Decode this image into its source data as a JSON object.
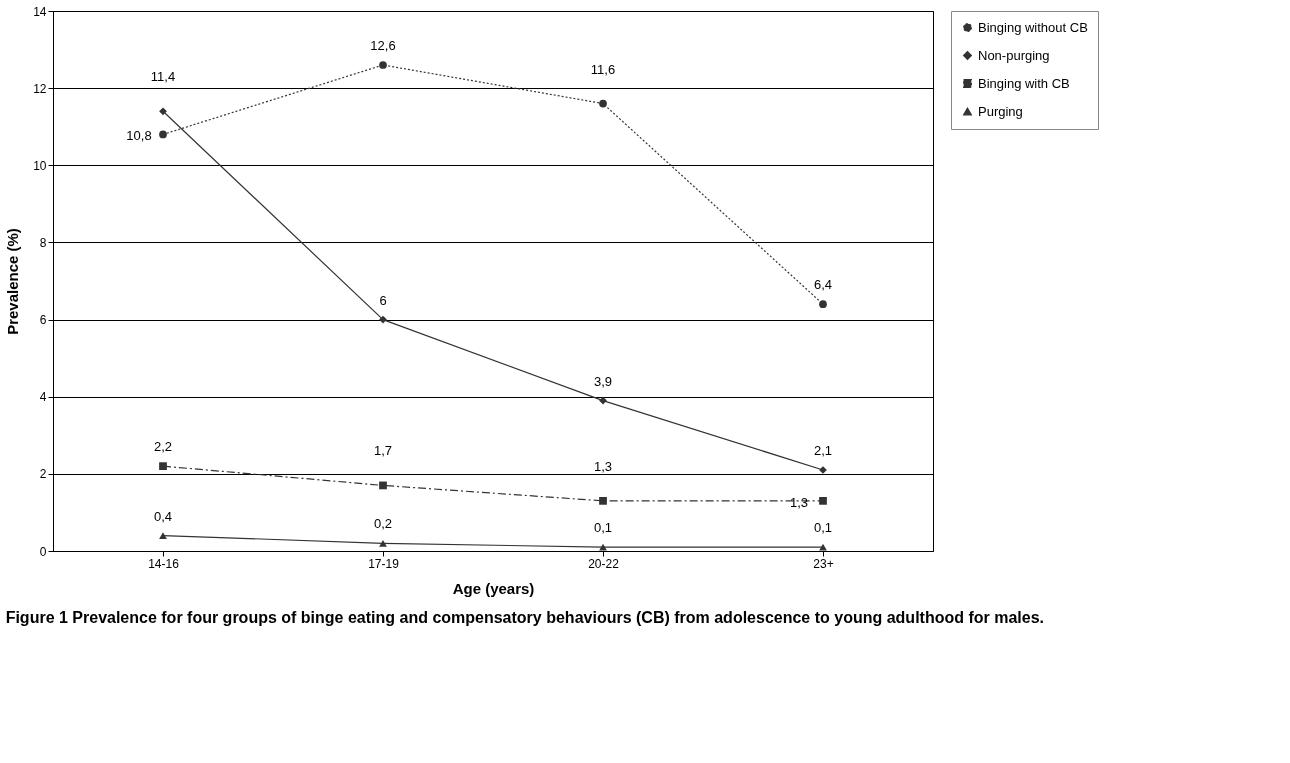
{
  "chart_data": {
    "type": "line",
    "title": "Figure 1 Prevalence for four groups of binge eating and compensatory behaviours (CB) from adolescence to young adulthood for males.",
    "xlabel": "Age (years)",
    "ylabel": "Prevalence (%)",
    "categories": [
      "14-16",
      "17-19",
      "20-22",
      "23+"
    ],
    "ylim": [
      0,
      14
    ],
    "yticks": [
      0,
      2,
      4,
      6,
      8,
      10,
      12,
      14
    ],
    "grid": "y",
    "legend": "right",
    "series": [
      {
        "name": "Binging without CB",
        "color": "#333333",
        "marker": "circle",
        "line_style": "dotted",
        "values": [
          10.8,
          12.6,
          11.6,
          6.4
        ],
        "value_labels": [
          "10,8",
          "12,6",
          "11,6",
          "6,4"
        ]
      },
      {
        "name": "Non-purging",
        "color": "#333333",
        "marker": "diamond",
        "line_style": "solid",
        "values": [
          11.4,
          6,
          3.9,
          2.1
        ],
        "value_labels": [
          "11,4",
          "6",
          "3,9",
          "2,1"
        ]
      },
      {
        "name": "Binging with CB",
        "color": "#333333",
        "marker": "square",
        "line_style": "dashdot",
        "values": [
          2.2,
          1.7,
          1.3,
          1.3
        ],
        "value_labels": [
          "2,2",
          "1,7",
          "1,3",
          "1,3"
        ]
      },
      {
        "name": "Purging",
        "color": "#333333",
        "marker": "triangle",
        "line_style": "solid",
        "values": [
          0.4,
          0.2,
          0.1,
          0.1
        ],
        "value_labels": [
          "0,4",
          "0,2",
          "0,1",
          "0,1"
        ]
      }
    ]
  }
}
